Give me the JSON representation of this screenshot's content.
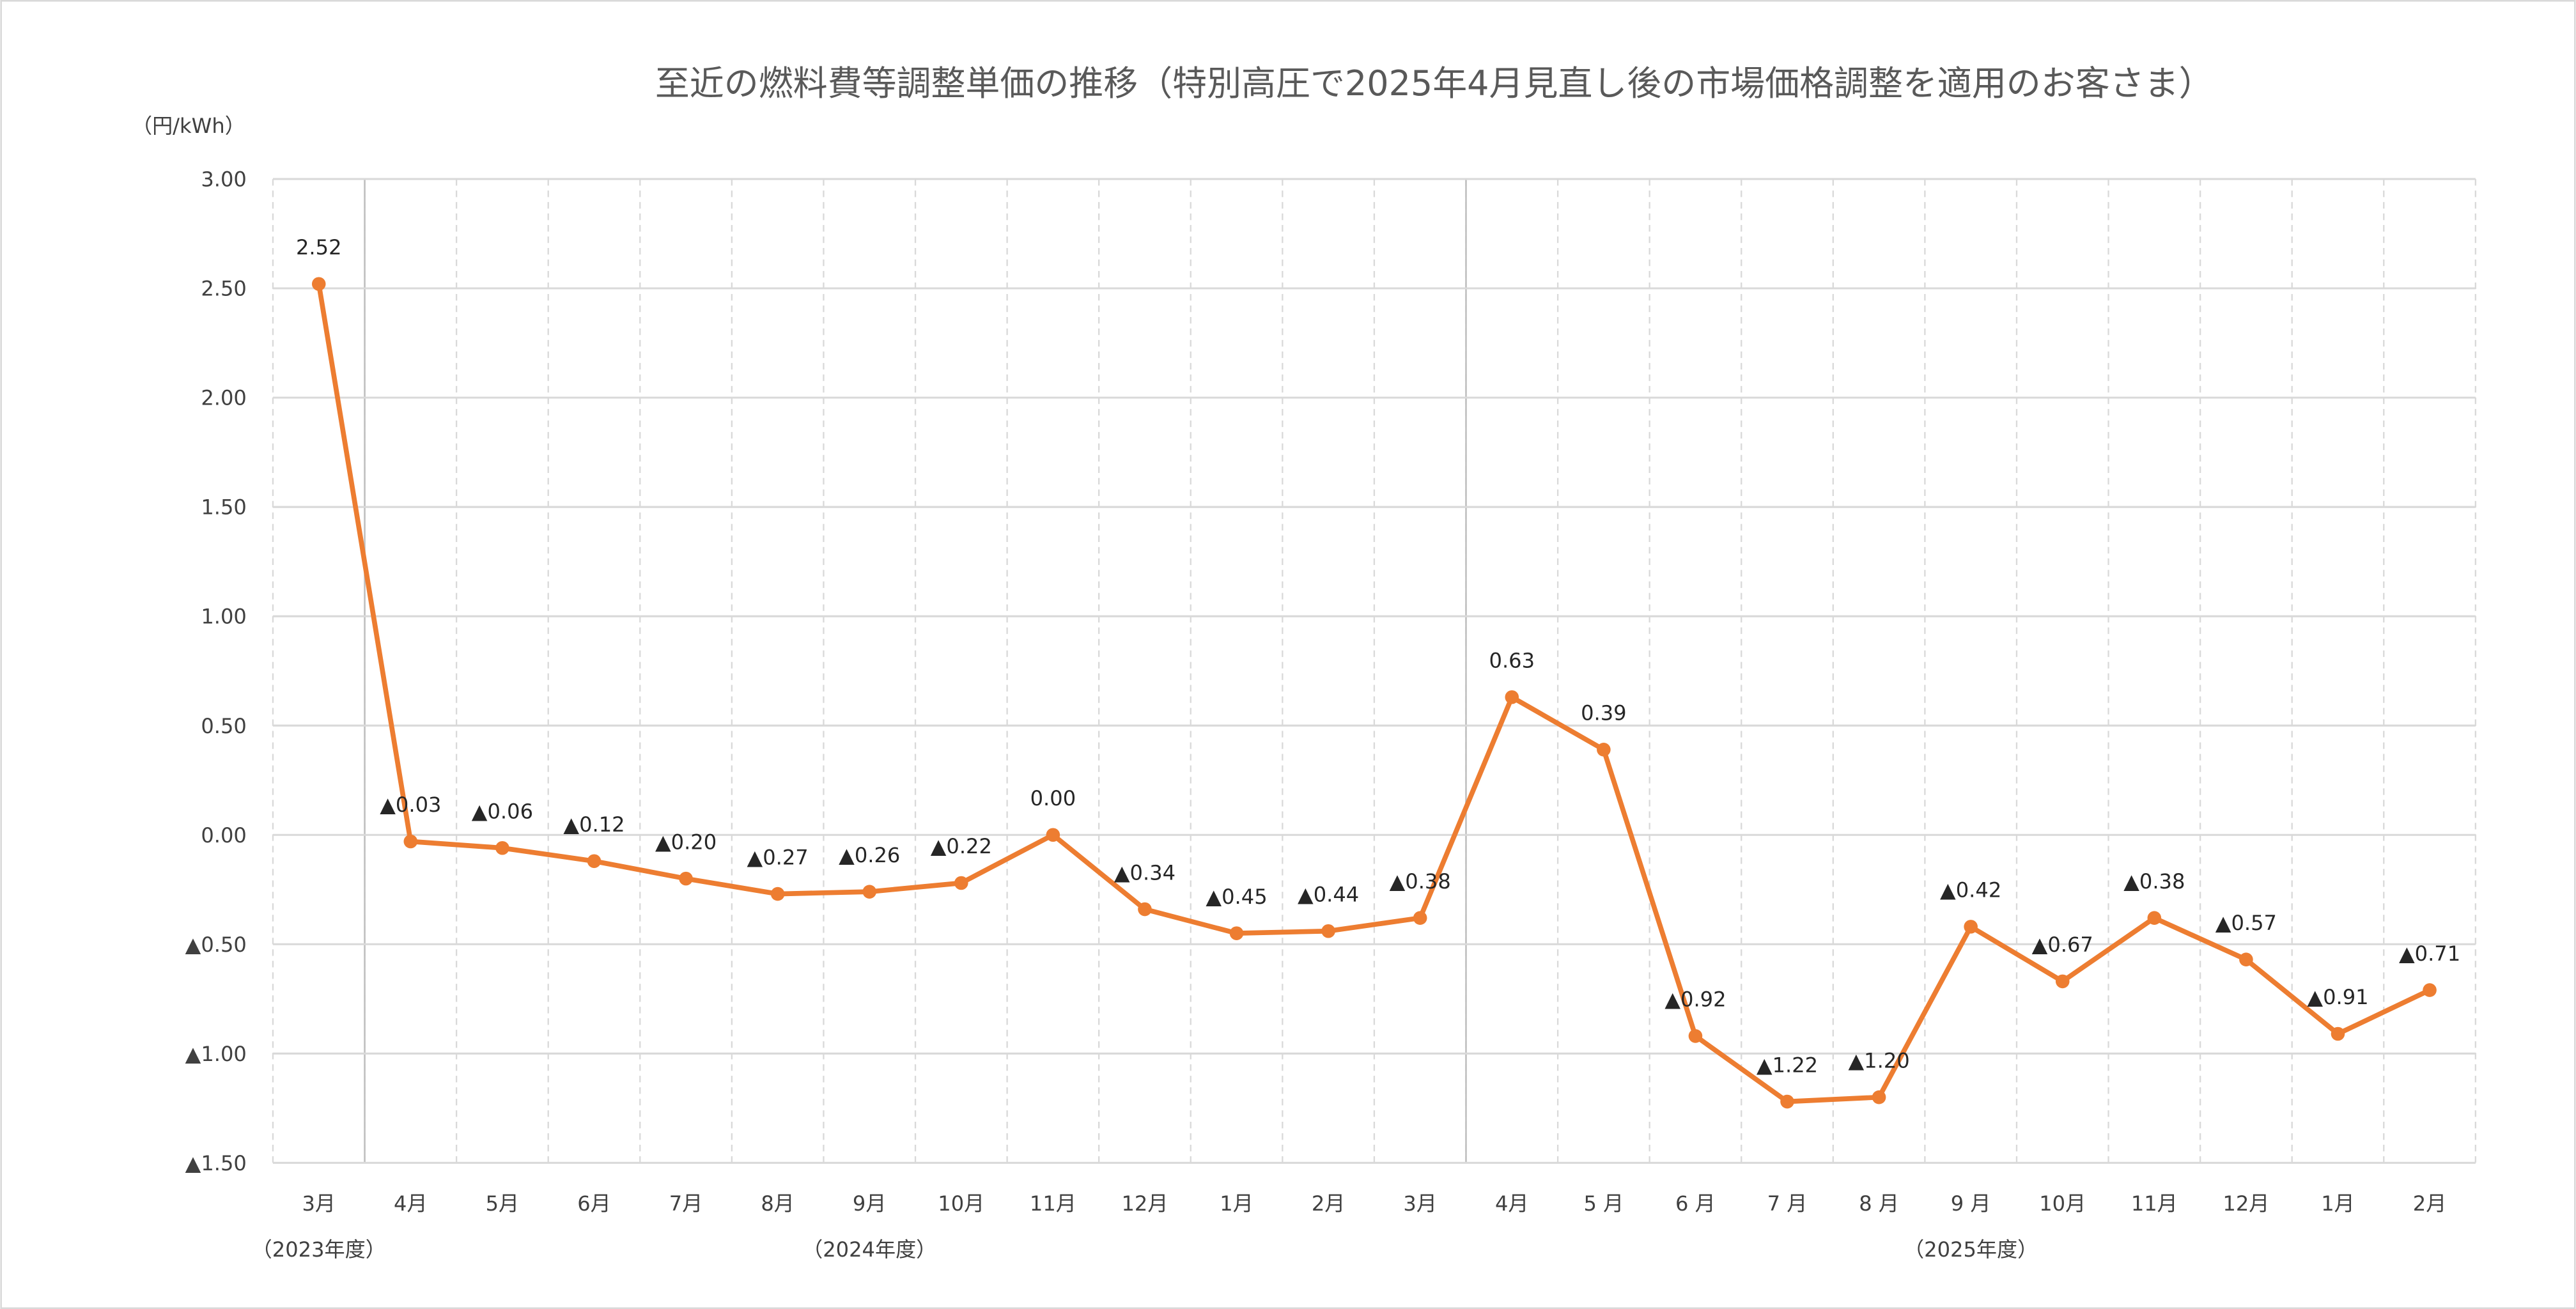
{
  "chart_data": {
    "type": "line",
    "title": "至近の燃料費等調整単価の推移（特別高圧で2025年4月見直し後の市場価格調整を適用のお客さま）",
    "ylabel": "（円/kWh）",
    "xlabel": "",
    "ylim": [
      -1.5,
      3.0
    ],
    "yticks": [
      3.0,
      2.5,
      2.0,
      1.5,
      1.0,
      0.5,
      0.0,
      -0.5,
      -1.0,
      -1.5
    ],
    "ytick_labels": [
      "3.00",
      "2.50",
      "2.00",
      "1.50",
      "1.00",
      "0.50",
      "0.00",
      "▲0.50",
      "▲1.00",
      "▲1.50"
    ],
    "grid": true,
    "categories": [
      "3月",
      "4月",
      "5月",
      "6月",
      "7月",
      "8月",
      "9月",
      "10月",
      "11月",
      "12月",
      "1月",
      "2月",
      "3月",
      "4月",
      "5 月",
      "6 月",
      "7 月",
      "8 月",
      "9 月",
      "10月",
      "11月",
      "12月",
      "1月",
      "2月"
    ],
    "fiscal_year_labels": [
      {
        "label": "（2023年度）",
        "category_index": 0
      },
      {
        "label": "（2024年度）",
        "category_index": 6
      },
      {
        "label": "（2025年度）",
        "category_index": 18
      }
    ],
    "fiscal_year_boundaries_after_index": [
      0,
      12
    ],
    "series": [
      {
        "name": "燃料費等調整単価",
        "color": "#ed7d31",
        "values": [
          2.52,
          -0.03,
          -0.06,
          -0.12,
          -0.2,
          -0.27,
          -0.26,
          -0.22,
          0.0,
          -0.34,
          -0.45,
          -0.44,
          -0.38,
          0.63,
          0.39,
          -0.92,
          -1.22,
          -1.2,
          -0.42,
          -0.67,
          -0.38,
          -0.57,
          -0.91,
          -0.71
        ],
        "data_labels": [
          "2.52",
          "▲0.03",
          "▲0.06",
          "▲0.12",
          "▲0.20",
          "▲0.27",
          "▲0.26",
          "▲0.22",
          "0.00",
          "▲0.34",
          "▲0.45",
          "▲0.44",
          "▲0.38",
          "0.63",
          "0.39",
          "▲0.92",
          "▲1.22",
          "▲1.20",
          "▲0.42",
          "▲0.67",
          "▲0.38",
          "▲0.57",
          "▲0.91",
          "▲0.71"
        ]
      }
    ]
  }
}
